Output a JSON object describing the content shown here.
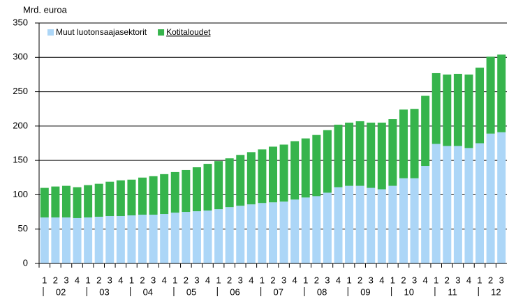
{
  "chart_data": {
    "type": "stacked_bar",
    "y_axis_label": "Mrd. euroa",
    "categories": [
      "1",
      "2",
      "3",
      "4",
      "1",
      "2",
      "3",
      "4",
      "1",
      "2",
      "3",
      "4",
      "1",
      "2",
      "3",
      "4",
      "1",
      "2",
      "3",
      "4",
      "1",
      "2",
      "3",
      "4",
      "1",
      "2",
      "3",
      "4",
      "1",
      "2",
      "3",
      "4",
      "1",
      "2",
      "3",
      "4",
      "1",
      "2",
      "3",
      "4",
      "1",
      "2",
      "3"
    ],
    "year_labels": [
      "02",
      "03",
      "04",
      "05",
      "06",
      "07",
      "08",
      "09",
      "10",
      "11",
      "12"
    ],
    "series": [
      {
        "name": "Muut luotonsaajasektorit",
        "color": "#acd6f7",
        "values": [
          67,
          67,
          67,
          66,
          67,
          68,
          69,
          69,
          70,
          71,
          71,
          72,
          74,
          75,
          76,
          77,
          79,
          82,
          84,
          86,
          88,
          89,
          90,
          93,
          96,
          98,
          103,
          111,
          113,
          113,
          110,
          108,
          113,
          124,
          124,
          142,
          174,
          171,
          171,
          168,
          175,
          189,
          191
        ]
      },
      {
        "name": "Kotitaloudet",
        "color": "#36b44c",
        "values": [
          43,
          45,
          46,
          45,
          47,
          48,
          50,
          52,
          52,
          54,
          56,
          58,
          59,
          61,
          64,
          68,
          70,
          71,
          74,
          76,
          78,
          81,
          83,
          85,
          86,
          89,
          91,
          91,
          92,
          94,
          95,
          97,
          97,
          100,
          101,
          102,
          103,
          104,
          105,
          107,
          110,
          112,
          113
        ]
      }
    ],
    "ylim": [
      0,
      350
    ],
    "yticks": [
      0,
      50,
      100,
      150,
      200,
      250,
      300,
      350
    ],
    "grid": true,
    "legend": "top-left"
  }
}
